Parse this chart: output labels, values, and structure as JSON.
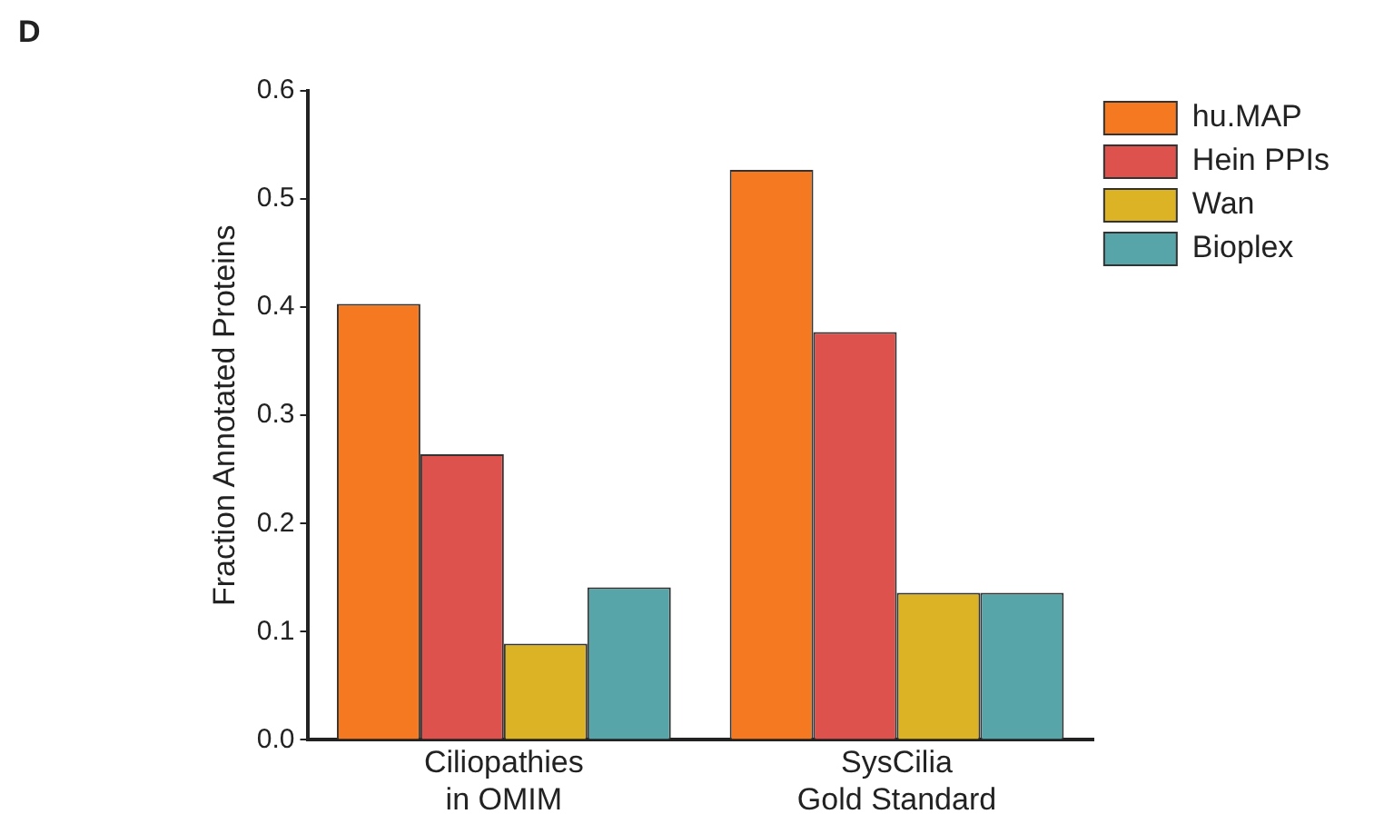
{
  "chart_data": {
    "type": "bar",
    "title": "D",
    "ylabel": "Fraction Annotated Proteins",
    "categories": [
      "Ciliopathies\nin OMIM",
      "SysCilia\nGold Standard"
    ],
    "series": [
      {
        "name": "hu.MAP",
        "color": "#f47920",
        "values": [
          0.403,
          0.527
        ]
      },
      {
        "name": "Hein PPIs",
        "color": "#dd524c",
        "values": [
          0.264,
          0.377
        ]
      },
      {
        "name": "Wan",
        "color": "#dbb325",
        "values": [
          0.089,
          0.136
        ]
      },
      {
        "name": "Bioplex",
        "color": "#57a5a8",
        "values": [
          0.141,
          0.136
        ]
      }
    ],
    "ylim": [
      0,
      0.6
    ],
    "yticks": [
      {
        "value": 0,
        "label": "0.0"
      },
      {
        "value": 0.1,
        "label": "0.1"
      },
      {
        "value": 0.2,
        "label": "0.2"
      },
      {
        "value": 0.3,
        "label": "0.3"
      },
      {
        "value": 0.4,
        "label": "0.4"
      },
      {
        "value": 0.5,
        "label": "0.5"
      },
      {
        "value": 0.6,
        "label": "0.6"
      }
    ],
    "grid": false,
    "legend": "top right"
  }
}
